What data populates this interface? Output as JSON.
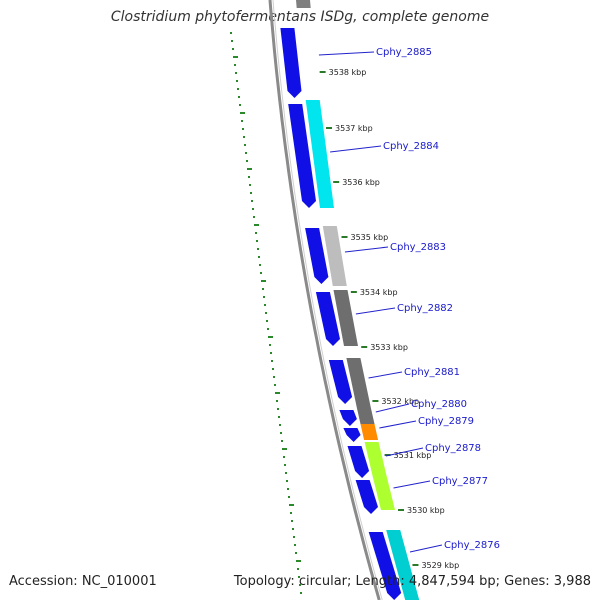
{
  "header": {
    "title": "Clostridium phytofermentans ISDg, complete genome"
  },
  "footer": {
    "accession": "Accession: NC_010001",
    "summary": "Topology: circular; Length: 4,847,594 bp; Genes: 3,988"
  },
  "map": {
    "colors": {
      "backbone": "#8a8a8a",
      "gc_track": "#2a8a2a",
      "strand_arrow": "#1010e6",
      "label_line": "#2222cc",
      "tick": "#2a7a2a"
    },
    "kbp_ticks": [
      "3538 kbp",
      "3537 kbp",
      "3536 kbp",
      "3535 kbp",
      "3534 kbp",
      "3533 kbp",
      "3532 kbp",
      "3531 kbp",
      "3530 kbp",
      "3529 kbp"
    ],
    "genes": [
      {
        "label": "Cphy_2885",
        "color": "#7f7f7f"
      },
      {
        "label": "Cphy_2884",
        "color": "#00e5ee"
      },
      {
        "label": "Cphy_2883",
        "color": "#bdbdbd"
      },
      {
        "label": "Cphy_2882",
        "color": "#6e6e6e"
      },
      {
        "label": "Cphy_2881",
        "color": "#6e6e6e"
      },
      {
        "label": "Cphy_2880",
        "color": "#6e6e6e"
      },
      {
        "label": "Cphy_2879",
        "color": "#ff8c00"
      },
      {
        "label": "Cphy_2878",
        "color": "#adff2f"
      },
      {
        "label": "Cphy_2877",
        "color": "#adff2f"
      },
      {
        "label": "Cphy_2876",
        "color": "#00ced1"
      }
    ]
  }
}
